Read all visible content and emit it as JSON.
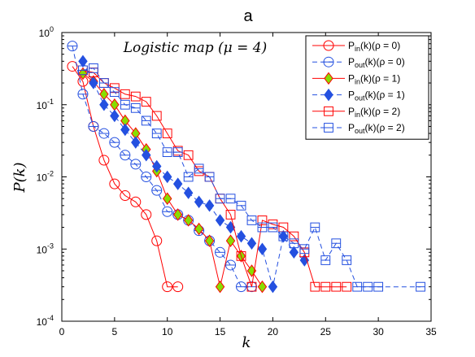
{
  "colors": {
    "red": "#ff0000",
    "blue": "#2450e0",
    "green": "#88dd00",
    "black": "#000000"
  },
  "chart_data": {
    "type": "line",
    "title": "a",
    "annotation": "Logistic map (μ = 4)",
    "xlabel": "k",
    "ylabel": "P(k)",
    "xlim": [
      0,
      35
    ],
    "ylim": [
      0.0001,
      1
    ],
    "yscale": "log",
    "x_ticks": [
      0,
      5,
      10,
      15,
      20,
      25,
      30,
      35
    ],
    "y_ticks": [
      {
        "value": 0.0001,
        "base": "10",
        "exp": "-4"
      },
      {
        "value": 0.001,
        "base": "10",
        "exp": "-3"
      },
      {
        "value": 0.01,
        "base": "10",
        "exp": "-2"
      },
      {
        "value": 0.1,
        "base": "10",
        "exp": "-1"
      },
      {
        "value": 1,
        "base": "10",
        "exp": "0"
      }
    ],
    "legend_position": "top-right",
    "series": [
      {
        "name": "P_in(k)(ρ = 0)",
        "legend_main": "P",
        "legend_sub": "in",
        "legend_rest": "(k)(ρ = 0)",
        "color": "#ff0000",
        "dash": "solid",
        "marker": "circle",
        "marker_fill": "none",
        "x": [
          1,
          2,
          3,
          4,
          5,
          6,
          7,
          8,
          9,
          10,
          11
        ],
        "y": [
          0.34,
          0.21,
          0.05,
          0.017,
          0.008,
          0.0055,
          0.0045,
          0.003,
          0.0013,
          0.0003,
          0.0003
        ]
      },
      {
        "name": "P_out(k)(ρ = 0)",
        "legend_main": "P",
        "legend_sub": "out",
        "legend_rest": "(k)(ρ = 0)",
        "color": "#2450e0",
        "dash": "dashed",
        "marker": "circle-bar",
        "marker_fill": "none",
        "x": [
          1,
          2,
          3,
          4,
          5,
          6,
          7,
          8,
          9,
          10,
          11,
          12,
          13,
          14,
          15,
          16,
          17,
          18
        ],
        "y": [
          0.65,
          0.14,
          0.05,
          0.04,
          0.03,
          0.02,
          0.015,
          0.01,
          0.0065,
          0.0033,
          0.003,
          0.0025,
          0.0018,
          0.0013,
          0.0009,
          0.0006,
          0.0003,
          0.0003
        ]
      },
      {
        "name": "P_in(k)(ρ = 1)",
        "legend_main": "P",
        "legend_sub": "in",
        "legend_rest": "(k)(ρ = 1)",
        "color": "#ff0000",
        "dash": "solid",
        "marker": "diamond",
        "marker_fill": "#88dd00",
        "x": [
          2,
          3,
          4,
          5,
          6,
          7,
          8,
          9,
          10,
          11,
          12,
          13,
          14,
          15,
          16,
          17,
          18,
          19
        ],
        "y": [
          0.27,
          0.21,
          0.14,
          0.1,
          0.06,
          0.04,
          0.024,
          0.012,
          0.005,
          0.003,
          0.0025,
          0.0019,
          0.0013,
          0.0003,
          0.0013,
          0.0008,
          0.0005,
          0.0003
        ]
      },
      {
        "name": "P_out(k)(ρ = 1)",
        "legend_main": "P",
        "legend_sub": "out",
        "legend_rest": "(k)(ρ = 1)",
        "color": "#2450e0",
        "dash": "dashed",
        "marker": "diamond",
        "marker_fill": "#2450e0",
        "x": [
          2,
          3,
          4,
          5,
          6,
          7,
          8,
          9,
          10,
          11,
          12,
          13,
          14,
          15,
          16,
          17,
          18,
          19,
          20,
          21,
          22,
          23
        ],
        "y": [
          0.4,
          0.2,
          0.1,
          0.07,
          0.045,
          0.03,
          0.02,
          0.014,
          0.01,
          0.008,
          0.006,
          0.0045,
          0.004,
          0.0025,
          0.002,
          0.0015,
          0.0012,
          0.001,
          0.0003,
          0.0015,
          0.0009,
          0.0007
        ]
      },
      {
        "name": "P_in(k)(ρ = 2)",
        "legend_main": "P",
        "legend_sub": "in",
        "legend_rest": "(k)(ρ = 2)",
        "color": "#ff0000",
        "dash": "solid",
        "marker": "square",
        "marker_fill": "none",
        "x": [
          2,
          3,
          4,
          5,
          6,
          7,
          8,
          9,
          10,
          11,
          12,
          13,
          14,
          15,
          16,
          17,
          18,
          19,
          20,
          21,
          22,
          23,
          24,
          25,
          26,
          27
        ],
        "y": [
          0.3,
          0.28,
          0.2,
          0.17,
          0.14,
          0.13,
          0.11,
          0.07,
          0.04,
          0.023,
          0.02,
          0.012,
          0.01,
          0.005,
          0.003,
          0.0008,
          0.0003,
          0.0025,
          0.0022,
          0.002,
          0.0015,
          0.0009,
          0.0003,
          0.0003,
          0.0003,
          0.0003
        ]
      },
      {
        "name": "P_out(k)(ρ = 2)",
        "legend_main": "P",
        "legend_sub": "out",
        "legend_rest": "(k)(ρ = 2)",
        "color": "#2450e0",
        "dash": "dashed",
        "marker": "square-bar",
        "marker_fill": "none",
        "x": [
          2,
          3,
          4,
          5,
          6,
          7,
          8,
          9,
          10,
          11,
          12,
          13,
          14,
          15,
          16,
          17,
          18,
          19,
          20,
          21,
          22,
          23,
          24,
          25,
          26,
          27,
          28,
          29,
          30,
          34
        ],
        "y": [
          0.3,
          0.32,
          0.2,
          0.15,
          0.1,
          0.09,
          0.06,
          0.04,
          0.022,
          0.022,
          0.01,
          0.013,
          0.01,
          0.005,
          0.005,
          0.004,
          0.0025,
          0.002,
          0.002,
          0.0015,
          0.0012,
          0.001,
          0.002,
          0.0007,
          0.0012,
          0.0007,
          0.0003,
          0.0003,
          0.0003,
          0.0003
        ]
      }
    ]
  }
}
